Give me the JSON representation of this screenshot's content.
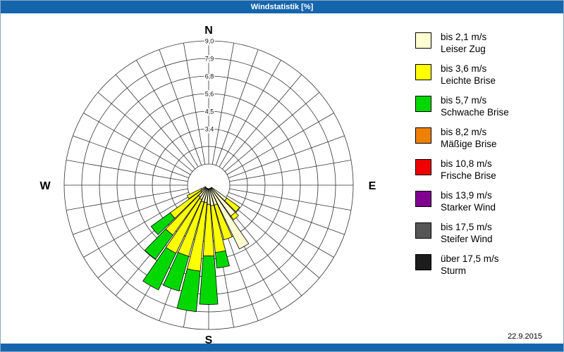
{
  "window": {
    "title": "Windstatistik [%]",
    "titlebar_color": "#1565ad",
    "date": "22.9.2015"
  },
  "chart_data": {
    "type": "wind-rose",
    "title": "Windstatistik [%]",
    "units": "%",
    "axis_max": 9.0,
    "sector_step_deg": 10,
    "ring_values": [
      1.125,
      2.25,
      3.375,
      4.5,
      5.625,
      6.75,
      7.875,
      9.0
    ],
    "ring_labels": [
      {
        "value": 9.0,
        "label": "9,0"
      },
      {
        "value": 7.875,
        "label": "7,9"
      },
      {
        "value": 6.75,
        "label": "6,8"
      },
      {
        "value": 5.625,
        "label": "5,6"
      },
      {
        "value": 4.5,
        "label": "4,5"
      },
      {
        "value": 3.375,
        "label": "3,4"
      }
    ],
    "compass": {
      "n": "N",
      "e": "E",
      "s": "S",
      "w": "W"
    },
    "classes": [
      {
        "speed": "bis 2,1 m/s",
        "name": "Leiser Zug",
        "color": "#ffffd2"
      },
      {
        "speed": "bis 3,6 m/s",
        "name": "Leichte Brise",
        "color": "#ffff00"
      },
      {
        "speed": "bis 5,7 m/s",
        "name": "Schwache Brise",
        "color": "#00d800"
      },
      {
        "speed": "bis 8,2 m/s",
        "name": "Mäßige Brise",
        "color": "#f08000"
      },
      {
        "speed": "bis 10,8 m/s",
        "name": "Frische Brise",
        "color": "#f00000"
      },
      {
        "speed": "bis 13,9 m/s",
        "name": "Starker Wind",
        "color": "#800090"
      },
      {
        "speed": "bis 17,5 m/s",
        "name": "Steifer Wind",
        "color": "#565656"
      },
      {
        "speed": "über 17,5 m/s",
        "name": "Sturm",
        "color": "#1c1c1c"
      }
    ],
    "sectors": [
      {
        "dir": 130,
        "values": [
          1.2,
          1.0,
          0,
          0,
          0,
          0,
          0,
          0
        ]
      },
      {
        "dir": 140,
        "values": [
          2.2,
          0.3,
          0,
          0,
          0,
          0,
          0,
          0
        ]
      },
      {
        "dir": 150,
        "values": [
          4.3,
          0,
          0,
          0,
          0,
          0,
          0,
          0
        ]
      },
      {
        "dir": 160,
        "values": [
          1.1,
          2.3,
          0,
          0,
          0,
          0,
          0,
          0
        ]
      },
      {
        "dir": 170,
        "values": [
          1.1,
          3.0,
          1.0,
          0,
          0,
          0,
          0,
          0
        ]
      },
      {
        "dir": 180,
        "values": [
          1.0,
          3.3,
          3.1,
          0,
          0,
          0,
          0,
          0
        ]
      },
      {
        "dir": 190,
        "values": [
          0.9,
          4.4,
          2.6,
          0,
          0,
          0,
          0,
          0
        ]
      },
      {
        "dir": 200,
        "values": [
          0.9,
          3.6,
          2.3,
          0,
          0,
          0,
          0,
          0
        ]
      },
      {
        "dir": 210,
        "values": [
          0.8,
          3.8,
          2.6,
          0,
          0,
          0,
          0,
          0
        ]
      },
      {
        "dir": 220,
        "values": [
          0.7,
          3.0,
          1.9,
          0,
          0,
          0,
          0,
          0
        ]
      },
      {
        "dir": 230,
        "values": [
          0.4,
          2.4,
          1.5,
          0,
          0,
          0,
          0,
          0
        ]
      },
      {
        "dir": 240,
        "values": [
          0.3,
          1.0,
          0,
          0,
          0,
          0,
          0,
          0
        ]
      }
    ]
  }
}
